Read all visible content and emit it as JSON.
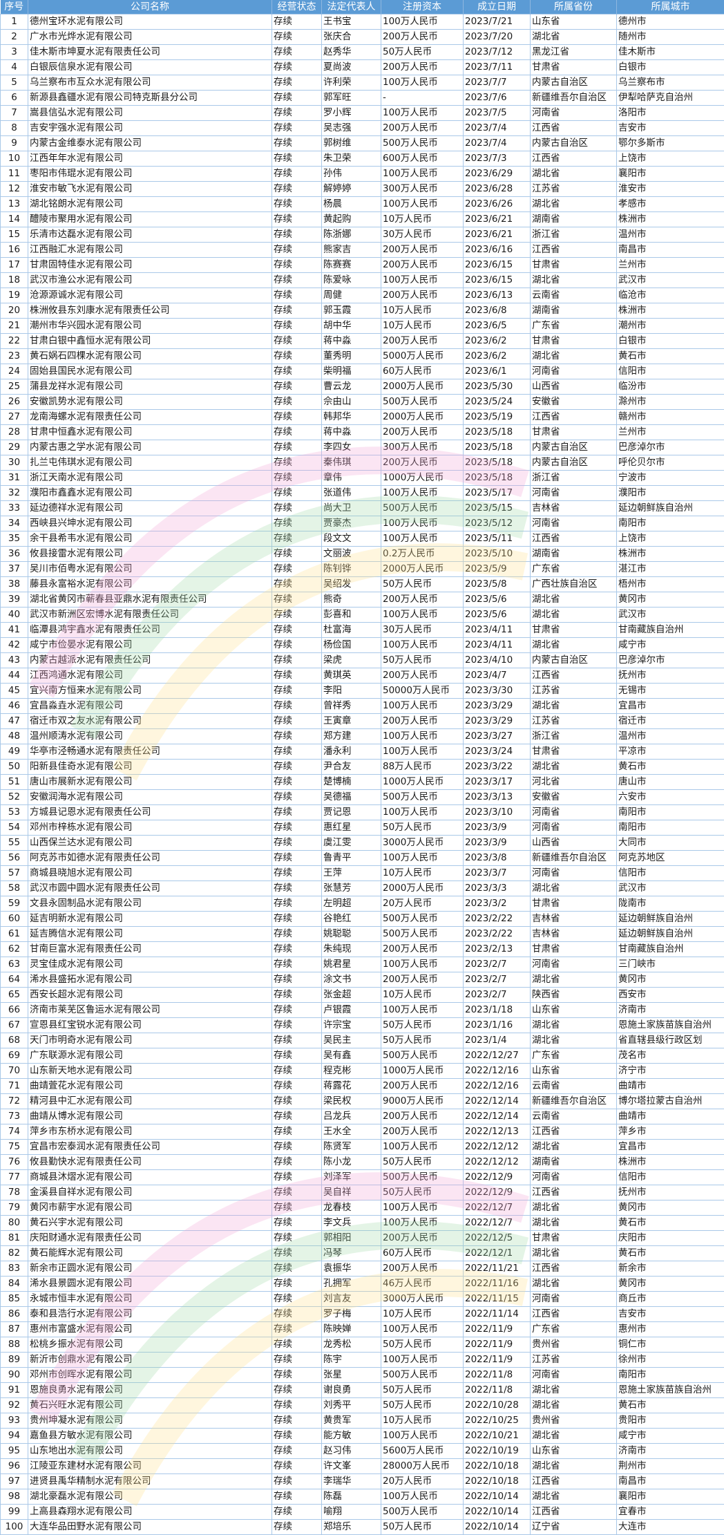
{
  "header": {
    "columns": [
      "序号",
      "公司名称",
      "经营状态",
      "法定代表人",
      "注册资本",
      "成立日期",
      "所属省份",
      "所属城市"
    ]
  },
  "rows": [
    [
      "1",
      "德州宝环水泥有限公司",
      "存续",
      "王书宝",
      "100万人民币",
      "2023/7/21",
      "山东省",
      "德州市"
    ],
    [
      "2",
      "广水市光烨水泥有限公司",
      "存续",
      "张庆合",
      "200万人民币",
      "2023/7/20",
      "湖北省",
      "随州市"
    ],
    [
      "3",
      "佳木斯市坤夏水泥有限责任公司",
      "存续",
      "赵秀华",
      "50万人民币",
      "2023/7/12",
      "黑龙江省",
      "佳木斯市"
    ],
    [
      "4",
      "白银辰信泉水泥有限公司",
      "存续",
      "夏尚波",
      "200万人民币",
      "2023/7/11",
      "甘肃省",
      "白银市"
    ],
    [
      "5",
      "乌兰察布市互众水泥有限公司",
      "存续",
      "许利荣",
      "100万人民币",
      "2023/7/7",
      "内蒙古自治区",
      "乌兰察布市"
    ],
    [
      "6",
      "新源县鑫疆水泥有限公司特克斯县分公司",
      "存续",
      "郭军旺",
      "-",
      "2023/7/6",
      "新疆维吾尔自治区",
      "伊犁哈萨克自治州"
    ],
    [
      "7",
      "嵩县信弘水泥有限公司",
      "存续",
      "罗小辉",
      "100万人民币",
      "2023/7/5",
      "河南省",
      "洛阳市"
    ],
    [
      "8",
      "吉安宇强水泥有限公司",
      "存续",
      "吴志强",
      "200万人民币",
      "2023/7/4",
      "江西省",
      "吉安市"
    ],
    [
      "9",
      "内蒙古金维泰水泥有限公司",
      "存续",
      "郭树维",
      "500万人民币",
      "2023/7/4",
      "内蒙古自治区",
      "鄂尔多斯市"
    ],
    [
      "10",
      "江西年年水泥有限公司",
      "存续",
      "朱卫荣",
      "600万人民币",
      "2023/7/3",
      "江西省",
      "上饶市"
    ],
    [
      "11",
      "枣阳市伟琨水泥有限公司",
      "存续",
      "孙伟",
      "100万人民币",
      "2023/6/29",
      "湖北省",
      "襄阳市"
    ],
    [
      "12",
      "淮安市敏飞水泥有限公司",
      "存续",
      "解婷婷",
      "300万人民币",
      "2023/6/28",
      "江苏省",
      "淮安市"
    ],
    [
      "13",
      "湖北铭朗水泥有限公司",
      "存续",
      "杨晨",
      "100万人民币",
      "2023/6/26",
      "湖北省",
      "孝感市"
    ],
    [
      "14",
      "醴陵市聚用水泥有限公司",
      "存续",
      "黄起购",
      "10万人民币",
      "2023/6/21",
      "湖南省",
      "株洲市"
    ],
    [
      "15",
      "乐清市达磊水泥有限公司",
      "存续",
      "陈浙娜",
      "30万人民币",
      "2023/6/21",
      "浙江省",
      "温州市"
    ],
    [
      "16",
      "江西融汇水泥有限公司",
      "存续",
      "熊家吉",
      "200万人民币",
      "2023/6/16",
      "江西省",
      "南昌市"
    ],
    [
      "17",
      "甘肃固特佳水泥有限公司",
      "存续",
      "陈赛赛",
      "200万人民币",
      "2023/6/15",
      "甘肃省",
      "兰州市"
    ],
    [
      "18",
      "武汉市渔公水泥有限公司",
      "存续",
      "陈爱咏",
      "100万人民币",
      "2023/6/15",
      "湖北省",
      "武汉市"
    ],
    [
      "19",
      "沧源源诚水泥有限公司",
      "存续",
      "周健",
      "200万人民币",
      "2023/6/13",
      "云南省",
      "临沧市"
    ],
    [
      "20",
      "株洲攸县东刘康水泥有限责任公司",
      "存续",
      "郭玉霞",
      "10万人民币",
      "2023/6/8",
      "湖南省",
      "株洲市"
    ],
    [
      "21",
      "潮州市华兴园水泥有限公司",
      "存续",
      "胡中华",
      "10万人民币",
      "2023/6/5",
      "广东省",
      "潮州市"
    ],
    [
      "22",
      "甘肃白银中鑫恒水泥有限公司",
      "存续",
      "蒋中淼",
      "200万人民币",
      "2023/6/2",
      "甘肃省",
      "白银市"
    ],
    [
      "23",
      "黄石娲石四棵水泥有限公司",
      "存续",
      "董秀明",
      "5000万人民币",
      "2023/6/2",
      "湖北省",
      "黄石市"
    ],
    [
      "24",
      "固始县国民水泥有限公司",
      "存续",
      "柴明福",
      "60万人民币",
      "2023/6/1",
      "河南省",
      "信阳市"
    ],
    [
      "25",
      "蒲县龙祥水泥有限公司",
      "存续",
      "曹云龙",
      "2000万人民币",
      "2023/5/30",
      "山西省",
      "临汾市"
    ],
    [
      "26",
      "安徽凯势水泥有限公司",
      "存续",
      "佘由山",
      "500万人民币",
      "2023/5/24",
      "安徽省",
      "滁州市"
    ],
    [
      "27",
      "龙南海螺水泥有限责任公司",
      "存续",
      "韩邦华",
      "2000万人民币",
      "2023/5/19",
      "江西省",
      "赣州市"
    ],
    [
      "28",
      "甘肃中恒鑫水泥有限公司",
      "存续",
      "蒋中淼",
      "200万人民币",
      "2023/5/18",
      "甘肃省",
      "兰州市"
    ],
    [
      "29",
      "内蒙古惠之学水泥有限公司",
      "存续",
      "李四女",
      "300万人民币",
      "2023/5/18",
      "内蒙古自治区",
      "巴彦淖尔市"
    ],
    [
      "30",
      "扎兰屯伟琪水泥有限公司",
      "存续",
      "秦伟琪",
      "200万人民币",
      "2023/5/18",
      "内蒙古自治区",
      "呼伦贝尔市"
    ],
    [
      "31",
      "浙江天南水泥有限公司",
      "存续",
      "章伟",
      "1000万人民币",
      "2023/5/18",
      "浙江省",
      "宁波市"
    ],
    [
      "32",
      "濮阳市鑫鑫水泥有限公司",
      "存续",
      "张道伟",
      "100万人民币",
      "2023/5/17",
      "河南省",
      "濮阳市"
    ],
    [
      "33",
      "延边德祥水泥有限公司",
      "存续",
      "尚大卫",
      "500万人民币",
      "2023/5/15",
      "吉林省",
      "延边朝鲜族自治州"
    ],
    [
      "34",
      "西峡县兴坤水泥有限公司",
      "存续",
      "贾豪杰",
      "100万人民币",
      "2023/5/12",
      "河南省",
      "南阳市"
    ],
    [
      "35",
      "余干县希韦水泥有限公司",
      "存续",
      "段文文",
      "100万人民币",
      "2023/5/11",
      "江西省",
      "上饶市"
    ],
    [
      "36",
      "攸县接雷水泥有限公司",
      "存续",
      "文丽波",
      "0.2万人民币",
      "2023/5/10",
      "湖南省",
      "株洲市"
    ],
    [
      "37",
      "吴川市佰粤水泥有限公司",
      "存续",
      "陈钊铧",
      "2000万人民币",
      "2023/5/9",
      "广东省",
      "湛江市"
    ],
    [
      "38",
      "藤县永富裕水泥有限公司",
      "存续",
      "吴绍发",
      "50万人民币",
      "2023/5/8",
      "广西壮族自治区",
      "梧州市"
    ],
    [
      "39",
      "湖北省黄冈市蕲春县亚鼎水泥有限责任公司",
      "存续",
      "熊奇",
      "200万人民币",
      "2023/5/6",
      "湖北省",
      "黄冈市"
    ],
    [
      "40",
      "武汉市新洲区宏博水泥有限责任公司",
      "存续",
      "彭喜和",
      "100万人民币",
      "2023/5/6",
      "湖北省",
      "武汉市"
    ],
    [
      "41",
      "临潭县鸿宇鑫水泥有限责任公司",
      "存续",
      "杜富海",
      "30万人民币",
      "2023/4/11",
      "甘肃省",
      "甘南藏族自治州"
    ],
    [
      "42",
      "咸宁市俭晏水泥有限公司",
      "存续",
      "杨俭国",
      "100万人民币",
      "2023/4/11",
      "湖北省",
      "咸宁市"
    ],
    [
      "43",
      "内蒙古越派水泥有限责任公司",
      "存续",
      "梁虎",
      "50万人民币",
      "2023/4/10",
      "内蒙古自治区",
      "巴彦淖尔市"
    ],
    [
      "44",
      "江西鸿通水泥有限公司",
      "存续",
      "黄琪英",
      "200万人民币",
      "2023/4/7",
      "江西省",
      "抚州市"
    ],
    [
      "45",
      "宜兴南方恒来水泥有限公司",
      "存续",
      "李阳",
      "50000万人民币",
      "2023/3/30",
      "江苏省",
      "无锡市"
    ],
    [
      "46",
      "宜昌淼垚水泥有限公司",
      "存续",
      "曾祥秀",
      "100万人民币",
      "2023/3/29",
      "湖北省",
      "宜昌市"
    ],
    [
      "47",
      "宿迁市双之友水泥有限公司",
      "存续",
      "王寅章",
      "200万人民币",
      "2023/3/29",
      "江苏省",
      "宿迁市"
    ],
    [
      "48",
      "温州顺涛水泥有限公司",
      "存续",
      "郑方建",
      "100万人民币",
      "2023/3/27",
      "浙江省",
      "温州市"
    ],
    [
      "49",
      "华亭市泾畅通水泥有限责任公司",
      "存续",
      "潘永利",
      "100万人民币",
      "2023/3/24",
      "甘肃省",
      "平凉市"
    ],
    [
      "50",
      "阳新县佳奇水泥有限公司",
      "存续",
      "尹合友",
      "88万人民币",
      "2023/3/22",
      "湖北省",
      "黄石市"
    ],
    [
      "51",
      "唐山市展新水泥有限公司",
      "存续",
      "楚博楠",
      "1000万人民币",
      "2023/3/17",
      "河北省",
      "唐山市"
    ],
    [
      "52",
      "安徽润海水泥有限公司",
      "存续",
      "吴德福",
      "500万人民币",
      "2023/3/13",
      "安徽省",
      "六安市"
    ],
    [
      "53",
      "方城县记恩水泥有限责任公司",
      "存续",
      "贾记恩",
      "100万人民币",
      "2023/3/10",
      "河南省",
      "南阳市"
    ],
    [
      "54",
      "邓州市梓栋水泥有限公司",
      "存续",
      "惠红星",
      "50万人民币",
      "2023/3/9",
      "河南省",
      "南阳市"
    ],
    [
      "55",
      "山西保兰达水泥有限公司",
      "存续",
      "虞江雯",
      "3000万人民币",
      "2023/3/9",
      "山西省",
      "大同市"
    ],
    [
      "56",
      "阿克苏市如德水泥有限责任公司",
      "存续",
      "鲁青平",
      "100万人民币",
      "2023/3/8",
      "新疆维吾尔自治区",
      "阿克苏地区"
    ],
    [
      "57",
      "商城县晓旭水泥有限公司",
      "存续",
      "王萍",
      "10万人民币",
      "2023/3/7",
      "河南省",
      "信阳市"
    ],
    [
      "58",
      "武汉市圆中圆水泥有限责任公司",
      "存续",
      "张慧芳",
      "2000万人民币",
      "2023/3/3",
      "湖北省",
      "武汉市"
    ],
    [
      "59",
      "文县永固制品水泥有限公司",
      "存续",
      "左明超",
      "20万人民币",
      "2023/3/2",
      "甘肃省",
      "陇南市"
    ],
    [
      "60",
      "延吉明新水泥有限公司",
      "存续",
      "谷艳红",
      "500万人民币",
      "2023/2/22",
      "吉林省",
      "延边朝鲜族自治州"
    ],
    [
      "61",
      "延吉腾信水泥有限公司",
      "存续",
      "姚聪聪",
      "500万人民币",
      "2023/2/22",
      "吉林省",
      "延边朝鲜族自治州"
    ],
    [
      "62",
      "甘南巨富水泥有限责任公司",
      "存续",
      "朱纯现",
      "200万人民币",
      "2023/2/13",
      "甘肃省",
      "甘南藏族自治州"
    ],
    [
      "63",
      "灵宝佳成水泥有限公司",
      "存续",
      "姚君星",
      "100万人民币",
      "2023/2/7",
      "河南省",
      "三门峡市"
    ],
    [
      "64",
      "浠水县盛拓水泥有限公司",
      "存续",
      "涂文书",
      "200万人民币",
      "2023/2/7",
      "湖北省",
      "黄冈市"
    ],
    [
      "65",
      "西安长超水泥有限公司",
      "存续",
      "张金超",
      "10万人民币",
      "2023/2/7",
      "陕西省",
      "西安市"
    ],
    [
      "66",
      "济南市莱芜区鲁运水泥有限公司",
      "存续",
      "卢银霞",
      "100万人民币",
      "2023/1/18",
      "山东省",
      "济南市"
    ],
    [
      "67",
      "宣恩县红宝锐水泥有限公司",
      "存续",
      "许宗宝",
      "50万人民币",
      "2023/1/16",
      "湖北省",
      "恩施土家族苗族自治州"
    ],
    [
      "68",
      "天门市明奇水泥有限公司",
      "存续",
      "吴民主",
      "50万人民币",
      "2023/1/4",
      "湖北省",
      "省直辖县级行政区划"
    ],
    [
      "69",
      "广东联源水泥有限公司",
      "存续",
      "吴有鑫",
      "500万人民币",
      "2022/12/27",
      "广东省",
      "茂名市"
    ],
    [
      "70",
      "山东新天地水泥有限公司",
      "存续",
      "程克彬",
      "1000万人民币",
      "2022/12/16",
      "山东省",
      "济宁市"
    ],
    [
      "71",
      "曲靖萓花水泥有限公司",
      "存续",
      "蒋露花",
      "200万人民币",
      "2022/12/16",
      "云南省",
      "曲靖市"
    ],
    [
      "72",
      "精河县中汇水泥有限公司",
      "存续",
      "梁民权",
      "9000万人民币",
      "2022/12/14",
      "新疆维吾尔自治区",
      "博尔塔拉蒙古自治州"
    ],
    [
      "73",
      "曲靖从博水泥有限公司",
      "存续",
      "吕龙兵",
      "200万人民币",
      "2022/12/14",
      "云南省",
      "曲靖市"
    ],
    [
      "74",
      "萍乡市东桥水泥有限公司",
      "存续",
      "王水全",
      "200万人民币",
      "2022/12/13",
      "江西省",
      "萍乡市"
    ],
    [
      "75",
      "宜昌市宏泰润水泥有限责任公司",
      "存续",
      "陈贤军",
      "100万人民币",
      "2022/12/12",
      "湖北省",
      "宜昌市"
    ],
    [
      "76",
      "攸县勤快水泥有限责任公司",
      "存续",
      "陈小龙",
      "50万人民币",
      "2022/12/12",
      "湖南省",
      "株洲市"
    ],
    [
      "77",
      "商城县沐熠水泥有限公司",
      "存续",
      "刘泽军",
      "500万人民币",
      "2022/12/9",
      "河南省",
      "信阳市"
    ],
    [
      "78",
      "金溪县自祥水泥有限公司",
      "存续",
      "吴自祥",
      "50万人民币",
      "2022/12/9",
      "江西省",
      "抚州市"
    ],
    [
      "79",
      "黄冈市薪宇水泥有限公司",
      "存续",
      "龙春枝",
      "100万人民币",
      "2022/12/7",
      "湖北省",
      "黄冈市"
    ],
    [
      "80",
      "黄石兴宇水泥有限公司",
      "存续",
      "李文兵",
      "100万人民币",
      "2022/12/7",
      "湖北省",
      "黄石市"
    ],
    [
      "81",
      "庆阳财通水泥有限责任公司",
      "存续",
      "郭相阳",
      "200万人民币",
      "2022/12/5",
      "甘肃省",
      "庆阳市"
    ],
    [
      "82",
      "黄石能辉水泥有限公司",
      "存续",
      "冯琴",
      "60万人民币",
      "2022/12/1",
      "湖北省",
      "黄石市"
    ],
    [
      "83",
      "新余市正圆水泥有限公司",
      "存续",
      "袁振华",
      "200万人民币",
      "2022/11/21",
      "江西省",
      "新余市"
    ],
    [
      "84",
      "浠水县景圆水泥有限公司",
      "存续",
      "孔拥军",
      "46万人民币",
      "2022/11/16",
      "湖北省",
      "黄冈市"
    ],
    [
      "85",
      "永城市恒丰水泥有限公司",
      "存续",
      "刘言友",
      "3000万人民币",
      "2022/11/15",
      "河南省",
      "商丘市"
    ],
    [
      "86",
      "泰和县浩行水泥有限公司",
      "存续",
      "罗子梅",
      "10万人民币",
      "2022/11/14",
      "江西省",
      "吉安市"
    ],
    [
      "87",
      "惠州市富盛水泥有限公司",
      "存续",
      "陈映婵",
      "100万人民币",
      "2022/11/9",
      "广东省",
      "惠州市"
    ],
    [
      "88",
      "松桃乡振水泥有限公司",
      "存续",
      "龙秀松",
      "50万人民币",
      "2022/11/9",
      "贵州省",
      "铜仁市"
    ],
    [
      "89",
      "新沂市创鼎水泥有限公司",
      "存续",
      "陈宇",
      "100万人民币",
      "2022/11/9",
      "江苏省",
      "徐州市"
    ],
    [
      "90",
      "邓州市创晖水泥有限公司",
      "存续",
      "张星",
      "500万人民币",
      "2022/11/8",
      "河南省",
      "南阳市"
    ],
    [
      "91",
      "恩施良勇水泥有限公司",
      "存续",
      "谢良勇",
      "50万人民币",
      "2022/11/8",
      "湖北省",
      "恩施土家族苗族自治州"
    ],
    [
      "92",
      "黄石兴旺水泥有限公司",
      "存续",
      "刘秀平",
      "50万人民币",
      "2022/10/28",
      "湖北省",
      "黄石市"
    ],
    [
      "93",
      "贵州坤凝水泥有限公司",
      "存续",
      "黄贵军",
      "10万人民币",
      "2022/10/25",
      "贵州省",
      "贵阳市"
    ],
    [
      "94",
      "嘉鱼县方敏水泥有限公司",
      "存续",
      "能方敏",
      "100万人民币",
      "2022/10/21",
      "湖北省",
      "咸宁市"
    ],
    [
      "95",
      "山东地出水泥有限公司",
      "存续",
      "赵习伟",
      "5600万人民币",
      "2022/10/19",
      "山东省",
      "济南市"
    ],
    [
      "96",
      "江陵亚东建材水泥有限公司",
      "存续",
      "许文峯",
      "28000万人民币",
      "2022/10/18",
      "湖北省",
      "荆州市"
    ],
    [
      "97",
      "进贤县禹华精制水泥有限公司",
      "存续",
      "李瑞华",
      "20万人民币",
      "2022/10/18",
      "江西省",
      "南昌市"
    ],
    [
      "98",
      "湖北豪磊水泥有限公司",
      "存续",
      "陈磊",
      "100万人民币",
      "2022/10/14",
      "湖北省",
      "襄阳市"
    ],
    [
      "99",
      "上高县森翔水泥有限公司",
      "存续",
      "喻翔",
      "500万人民币",
      "2022/10/14",
      "江西省",
      "宜春市"
    ],
    [
      "100",
      "大连华品田野水泥有限公司",
      "存续",
      "郑培乐",
      "50万人民币",
      "2022/10/14",
      "辽宁省",
      "大连市"
    ]
  ],
  "colors": {
    "header_bg": "#5b9bd5",
    "grid": "#a9c8e8"
  }
}
